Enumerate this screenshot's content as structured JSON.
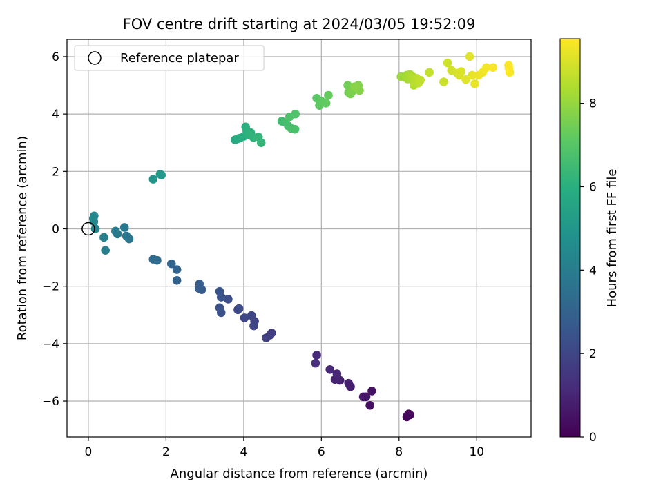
{
  "chart_data": {
    "type": "scatter",
    "title": "FOV centre drift starting at 2024/03/05 19:52:09",
    "xlabel": "Angular distance from reference (arcmin)",
    "ylabel": "Rotation from reference (arcmin)",
    "xlim": [
      -0.55,
      11.4
    ],
    "ylim": [
      -7.25,
      6.6
    ],
    "xticks": [
      0,
      2,
      4,
      6,
      8,
      10
    ],
    "yticks": [
      -6,
      -4,
      -2,
      0,
      2,
      4,
      6
    ],
    "grid": true,
    "legend": {
      "position": "top-left",
      "entries": [
        {
          "label": "Reference platepar",
          "marker": "open-circle"
        }
      ]
    },
    "reference_point": {
      "x": 0,
      "y": 0
    },
    "colorbar": {
      "label": "Hours from first FF file",
      "range": [
        0,
        9.55
      ],
      "ticks": [
        0,
        2,
        4,
        6,
        8
      ],
      "colormap": "viridis"
    },
    "points": [
      {
        "x": 8.25,
        "y": -6.45,
        "h": 0.05
      },
      {
        "x": 8.2,
        "y": -6.55,
        "h": 0.1
      },
      {
        "x": 8.22,
        "y": -6.5,
        "h": 0.15
      },
      {
        "x": 8.28,
        "y": -6.48,
        "h": 0.2
      },
      {
        "x": 7.25,
        "y": -6.15,
        "h": 0.4
      },
      {
        "x": 7.3,
        "y": -5.65,
        "h": 0.5
      },
      {
        "x": 7.15,
        "y": -5.85,
        "h": 0.55
      },
      {
        "x": 7.08,
        "y": -5.85,
        "h": 0.6
      },
      {
        "x": 6.75,
        "y": -5.5,
        "h": 0.75
      },
      {
        "x": 6.7,
        "y": -5.38,
        "h": 0.8
      },
      {
        "x": 6.48,
        "y": -5.28,
        "h": 0.9
      },
      {
        "x": 6.35,
        "y": -5.25,
        "h": 0.95
      },
      {
        "x": 6.4,
        "y": -5.05,
        "h": 1.0
      },
      {
        "x": 6.22,
        "y": -4.9,
        "h": 1.05
      },
      {
        "x": 5.88,
        "y": -4.4,
        "h": 1.15
      },
      {
        "x": 5.85,
        "y": -4.68,
        "h": 1.2
      },
      {
        "x": 4.72,
        "y": -3.63,
        "h": 1.7
      },
      {
        "x": 4.68,
        "y": -3.7,
        "h": 1.75
      },
      {
        "x": 4.58,
        "y": -3.8,
        "h": 1.8
      },
      {
        "x": 4.28,
        "y": -3.22,
        "h": 1.9
      },
      {
        "x": 4.26,
        "y": -3.38,
        "h": 1.95
      },
      {
        "x": 4.2,
        "y": -3.02,
        "h": 2.0
      },
      {
        "x": 4.02,
        "y": -3.1,
        "h": 2.05
      },
      {
        "x": 3.85,
        "y": -2.82,
        "h": 2.1
      },
      {
        "x": 3.88,
        "y": -2.78,
        "h": 2.15
      },
      {
        "x": 3.6,
        "y": -2.45,
        "h": 2.3
      },
      {
        "x": 3.42,
        "y": -2.92,
        "h": 2.35
      },
      {
        "x": 3.38,
        "y": -2.75,
        "h": 2.4
      },
      {
        "x": 3.42,
        "y": -2.38,
        "h": 2.45
      },
      {
        "x": 3.38,
        "y": -2.18,
        "h": 2.5
      },
      {
        "x": 2.92,
        "y": -2.12,
        "h": 2.7
      },
      {
        "x": 2.85,
        "y": -2.08,
        "h": 2.75
      },
      {
        "x": 2.86,
        "y": -1.92,
        "h": 2.8
      },
      {
        "x": 2.28,
        "y": -1.8,
        "h": 3.0
      },
      {
        "x": 2.28,
        "y": -1.42,
        "h": 3.05
      },
      {
        "x": 2.14,
        "y": -1.22,
        "h": 3.1
      },
      {
        "x": 1.77,
        "y": -1.1,
        "h": 3.3
      },
      {
        "x": 1.67,
        "y": -1.06,
        "h": 3.35
      },
      {
        "x": 1.05,
        "y": -0.35,
        "h": 3.7
      },
      {
        "x": 0.98,
        "y": -0.25,
        "h": 3.75
      },
      {
        "x": 0.93,
        "y": 0.05,
        "h": 3.8
      },
      {
        "x": 0.75,
        "y": -0.18,
        "h": 3.9
      },
      {
        "x": 0.7,
        "y": -0.08,
        "h": 3.95
      },
      {
        "x": 0.44,
        "y": -0.75,
        "h": 4.1
      },
      {
        "x": 0.4,
        "y": -0.3,
        "h": 4.15
      },
      {
        "x": 0.18,
        "y": 0.0,
        "h": 4.3
      },
      {
        "x": 0.14,
        "y": 0.25,
        "h": 4.35
      },
      {
        "x": 0.15,
        "y": 0.45,
        "h": 4.4
      },
      {
        "x": 0.13,
        "y": 0.36,
        "h": 4.45
      },
      {
        "x": 1.67,
        "y": 1.73,
        "h": 5.0
      },
      {
        "x": 1.85,
        "y": 1.9,
        "h": 5.05
      },
      {
        "x": 1.88,
        "y": 1.87,
        "h": 5.1
      },
      {
        "x": 3.78,
        "y": 3.1,
        "h": 5.8
      },
      {
        "x": 3.85,
        "y": 3.14,
        "h": 5.85
      },
      {
        "x": 3.9,
        "y": 3.16,
        "h": 5.9
      },
      {
        "x": 4.0,
        "y": 3.22,
        "h": 5.95
      },
      {
        "x": 4.05,
        "y": 3.55,
        "h": 6.0
      },
      {
        "x": 4.08,
        "y": 3.42,
        "h": 6.05
      },
      {
        "x": 4.13,
        "y": 3.28,
        "h": 6.1
      },
      {
        "x": 4.18,
        "y": 3.35,
        "h": 6.15
      },
      {
        "x": 4.25,
        "y": 3.18,
        "h": 6.2
      },
      {
        "x": 4.38,
        "y": 3.2,
        "h": 6.25
      },
      {
        "x": 4.45,
        "y": 3.0,
        "h": 6.3
      },
      {
        "x": 4.98,
        "y": 3.75,
        "h": 6.55
      },
      {
        "x": 5.08,
        "y": 3.7,
        "h": 6.6
      },
      {
        "x": 5.15,
        "y": 3.58,
        "h": 6.65
      },
      {
        "x": 5.22,
        "y": 3.5,
        "h": 6.7
      },
      {
        "x": 5.32,
        "y": 3.47,
        "h": 6.75
      },
      {
        "x": 5.18,
        "y": 3.9,
        "h": 6.8
      },
      {
        "x": 5.33,
        "y": 4.0,
        "h": 6.85
      },
      {
        "x": 5.88,
        "y": 4.55,
        "h": 7.05
      },
      {
        "x": 5.95,
        "y": 4.3,
        "h": 7.1
      },
      {
        "x": 6.0,
        "y": 4.45,
        "h": 7.15
      },
      {
        "x": 6.12,
        "y": 4.38,
        "h": 7.2
      },
      {
        "x": 6.18,
        "y": 4.65,
        "h": 7.25
      },
      {
        "x": 6.68,
        "y": 5.0,
        "h": 7.45
      },
      {
        "x": 6.7,
        "y": 4.75,
        "h": 7.5
      },
      {
        "x": 6.75,
        "y": 4.7,
        "h": 7.55
      },
      {
        "x": 6.8,
        "y": 4.8,
        "h": 7.6
      },
      {
        "x": 6.88,
        "y": 4.9,
        "h": 7.65
      },
      {
        "x": 6.95,
        "y": 5.0,
        "h": 7.7
      },
      {
        "x": 6.98,
        "y": 4.82,
        "h": 7.75
      },
      {
        "x": 6.85,
        "y": 4.95,
        "h": 7.8
      },
      {
        "x": 8.05,
        "y": 5.3,
        "h": 8.1
      },
      {
        "x": 8.15,
        "y": 5.28,
        "h": 8.15
      },
      {
        "x": 8.2,
        "y": 5.35,
        "h": 8.2
      },
      {
        "x": 8.22,
        "y": 5.22,
        "h": 8.25
      },
      {
        "x": 8.28,
        "y": 5.38,
        "h": 8.3
      },
      {
        "x": 8.32,
        "y": 5.2,
        "h": 8.35
      },
      {
        "x": 8.35,
        "y": 5.3,
        "h": 8.4
      },
      {
        "x": 8.38,
        "y": 5.0,
        "h": 8.45
      },
      {
        "x": 8.4,
        "y": 5.15,
        "h": 8.5
      },
      {
        "x": 8.45,
        "y": 5.25,
        "h": 8.55
      },
      {
        "x": 8.5,
        "y": 5.08,
        "h": 8.6
      },
      {
        "x": 8.55,
        "y": 5.18,
        "h": 8.65
      },
      {
        "x": 8.78,
        "y": 5.45,
        "h": 8.7
      },
      {
        "x": 9.15,
        "y": 5.12,
        "h": 8.8
      },
      {
        "x": 9.25,
        "y": 5.78,
        "h": 8.85
      },
      {
        "x": 9.35,
        "y": 5.52,
        "h": 8.9
      },
      {
        "x": 9.5,
        "y": 5.42,
        "h": 8.95
      },
      {
        "x": 9.55,
        "y": 5.35,
        "h": 9.0
      },
      {
        "x": 9.6,
        "y": 5.48,
        "h": 9.05
      },
      {
        "x": 9.72,
        "y": 5.2,
        "h": 9.1
      },
      {
        "x": 9.82,
        "y": 6.0,
        "h": 9.15
      },
      {
        "x": 9.88,
        "y": 5.35,
        "h": 9.2
      },
      {
        "x": 9.95,
        "y": 5.05,
        "h": 9.25
      },
      {
        "x": 10.05,
        "y": 5.35,
        "h": 9.3
      },
      {
        "x": 10.15,
        "y": 5.45,
        "h": 9.35
      },
      {
        "x": 10.25,
        "y": 5.62,
        "h": 9.4
      },
      {
        "x": 10.42,
        "y": 5.62,
        "h": 9.45
      },
      {
        "x": 10.82,
        "y": 5.7,
        "h": 9.5
      },
      {
        "x": 10.85,
        "y": 5.45,
        "h": 9.52
      },
      {
        "x": 10.83,
        "y": 5.58,
        "h": 9.55
      }
    ]
  }
}
